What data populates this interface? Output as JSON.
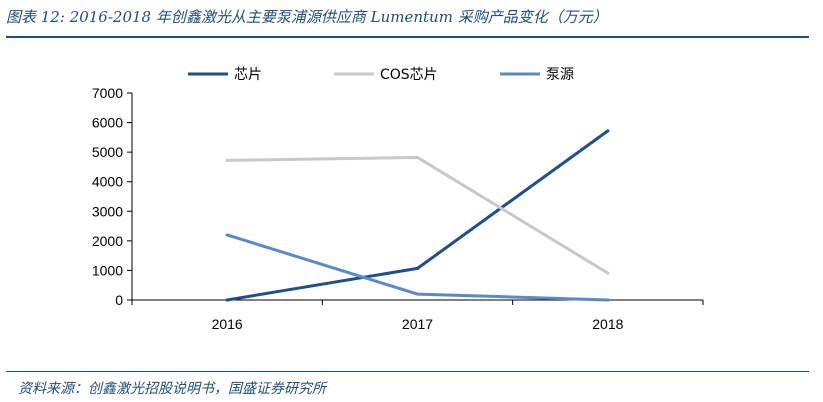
{
  "figure": {
    "title": "图表 12:  2016-2018 年创鑫激光从主要泵浦源供应商 Lumentum 采购产品变化（万元）",
    "source": "资料来源：创鑫激光招股说明书，国盛证券研究所"
  },
  "chart_data": {
    "type": "line",
    "x": [
      "2016",
      "2017",
      "2018"
    ],
    "ylim": [
      0,
      7000
    ],
    "yticks": [
      0,
      1000,
      2000,
      3000,
      4000,
      5000,
      6000,
      7000
    ],
    "grid": false,
    "legend_position": "top",
    "series": [
      {
        "name": "芯片",
        "color": "#1f4e8c",
        "values": [
          0,
          1070,
          5720
        ]
      },
      {
        "name": "COS芯片",
        "color": "#c8c8c8",
        "values": [
          4720,
          4820,
          910
        ]
      },
      {
        "name": "泵源",
        "color": "#5a8ac6",
        "values": [
          2200,
          200,
          0
        ]
      }
    ]
  }
}
